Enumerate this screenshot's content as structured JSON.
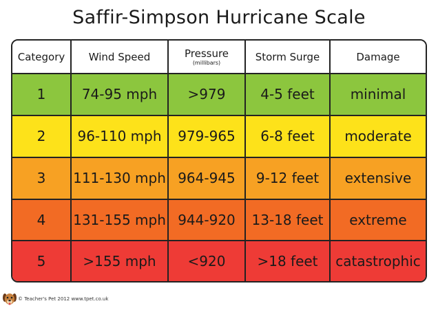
{
  "title": "Saffir-Simpson Hurricane Scale",
  "headers": {
    "category": "Category",
    "wind_speed": "Wind Speed",
    "pressure": "Pressure",
    "pressure_unit": "(millibars)",
    "storm_surge": "Storm Surge",
    "damage": "Damage"
  },
  "rows": [
    {
      "category": "1",
      "wind": "74-95 mph",
      "pressure": ">979",
      "surge": "4-5 feet",
      "damage": "minimal",
      "color": "#8cc63e"
    },
    {
      "category": "2",
      "wind": "96-110 mph",
      "pressure": "979-965",
      "surge": "6-8 feet",
      "damage": "moderate",
      "color": "#fde21a"
    },
    {
      "category": "3",
      "wind": "111-130 mph",
      "pressure": "964-945",
      "surge": "9-12 feet",
      "damage": "extensive",
      "color": "#f7a123"
    },
    {
      "category": "4",
      "wind": "131-155 mph",
      "pressure": "944-920",
      "surge": "13-18 feet",
      "damage": "extreme",
      "color": "#f26b24"
    },
    {
      "category": "5",
      "wind": ">155 mph",
      "pressure": "<920",
      "surge": ">18 feet",
      "damage": "catastrophic",
      "color": "#ee3b36"
    }
  ],
  "footer": {
    "credit": "© Teacher's Pet 2012  www.tpet.co.uk",
    "logo_icon": "dog-mascot-icon"
  }
}
